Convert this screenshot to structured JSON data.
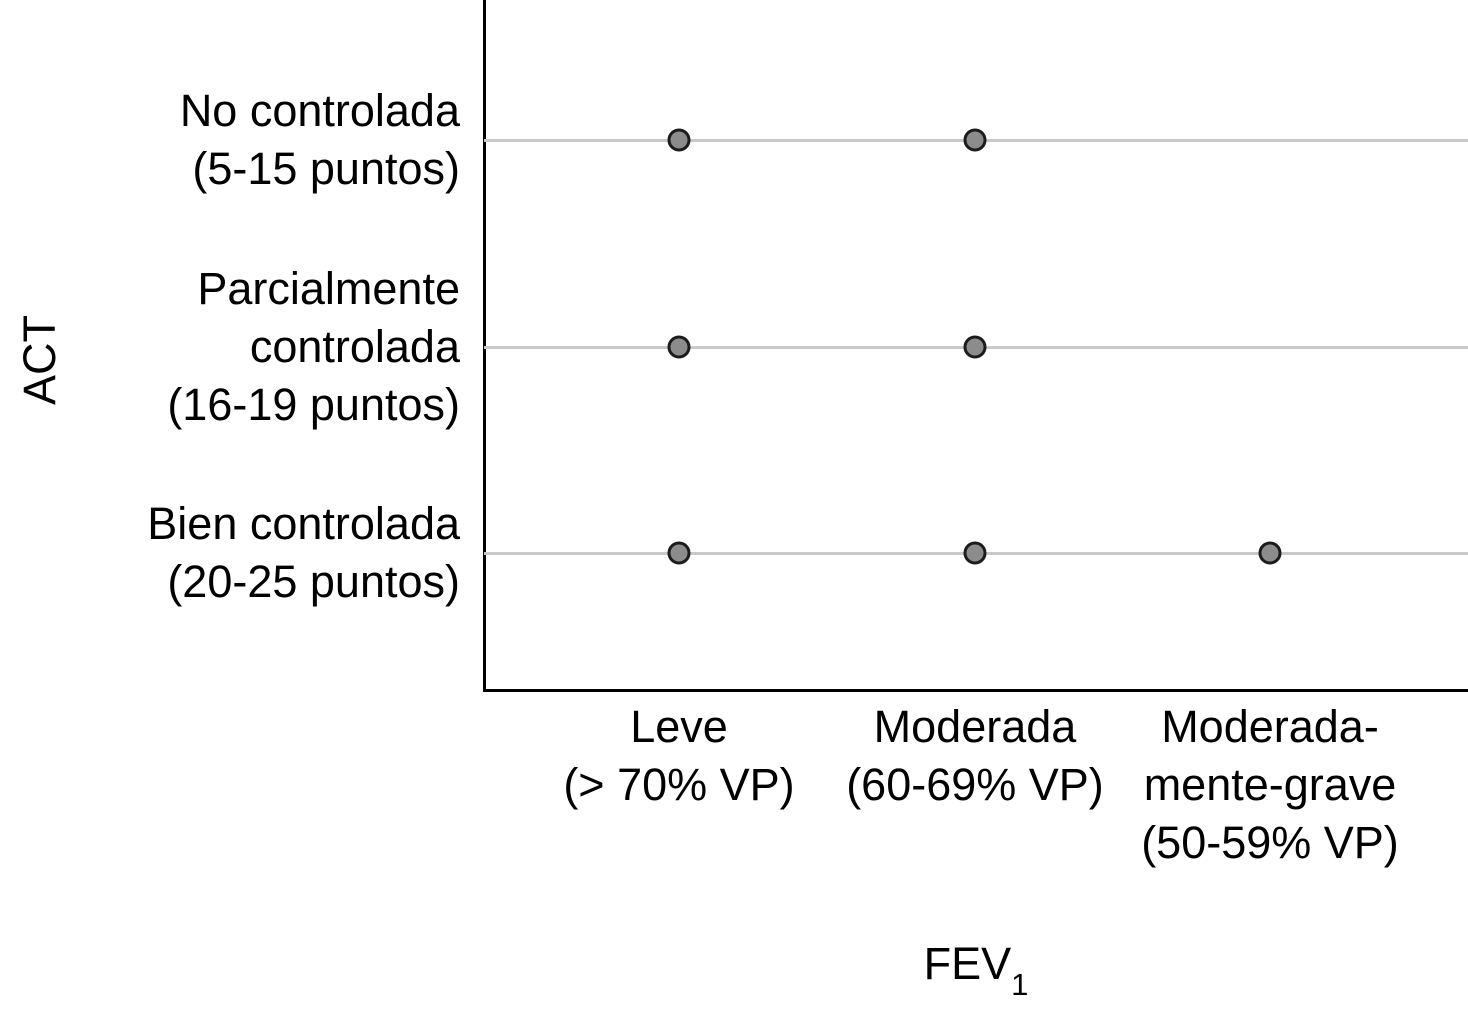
{
  "chart_data": {
    "type": "scatter",
    "title": "",
    "xlabel": "FEV",
    "xlabel_subscript": "1",
    "ylabel": "ACT",
    "grid": "horizontal-only",
    "legend": "none",
    "x_categories": [
      "Leve (> 70% VP)",
      "Moderada (60-69% VP)",
      "Moderada-mente-grave (50-59% VP)"
    ],
    "x_category_lines": [
      [
        "Leve",
        "(> 70% VP)"
      ],
      [
        "Moderada",
        "(60-69% VP)"
      ],
      [
        "Moderada-",
        "mente-grave",
        "(50-59% VP)"
      ]
    ],
    "y_categories": [
      "No controlada (5-15 puntos)",
      "Parcialmente controlada (16-19 puntos)",
      "Bien controlada (20-25 puntos)"
    ],
    "y_category_lines": [
      [
        "No controlada",
        "(5-15 puntos)"
      ],
      [
        "Parcialmente",
        "controlada",
        "(16-19 puntos)"
      ],
      [
        "Bien controlada",
        "(20-25 puntos)"
      ]
    ],
    "points": [
      {
        "x_index": 0,
        "y_index": 0,
        "x": "Leve (> 70% VP)",
        "y": "No controlada (5-15 puntos)"
      },
      {
        "x_index": 1,
        "y_index": 0,
        "x": "Moderada (60-69% VP)",
        "y": "No controlada (5-15 puntos)"
      },
      {
        "x_index": 0,
        "y_index": 1,
        "x": "Leve (> 70% VP)",
        "y": "Parcialmente controlada (16-19 puntos)"
      },
      {
        "x_index": 1,
        "y_index": 1,
        "x": "Moderada (60-69% VP)",
        "y": "Parcialmente controlada (16-19 puntos)"
      },
      {
        "x_index": 0,
        "y_index": 2,
        "x": "Leve (> 70% VP)",
        "y": "Bien controlada (20-25 puntos)"
      },
      {
        "x_index": 1,
        "y_index": 2,
        "x": "Moderada (60-69% VP)",
        "y": "Bien controlada (20-25 puntos)"
      },
      {
        "x_index": 2,
        "y_index": 2,
        "x": "Moderada-mente-grave (50-59% VP)",
        "y": "Bien controlada (20-25 puntos)"
      }
    ],
    "colors": {
      "point_fill": "#8c8c8c",
      "point_border": "#1c1c1c",
      "gridline": "#c9c9c9",
      "axis": "#000000",
      "text": "#000000",
      "background": "#ffffff"
    }
  }
}
